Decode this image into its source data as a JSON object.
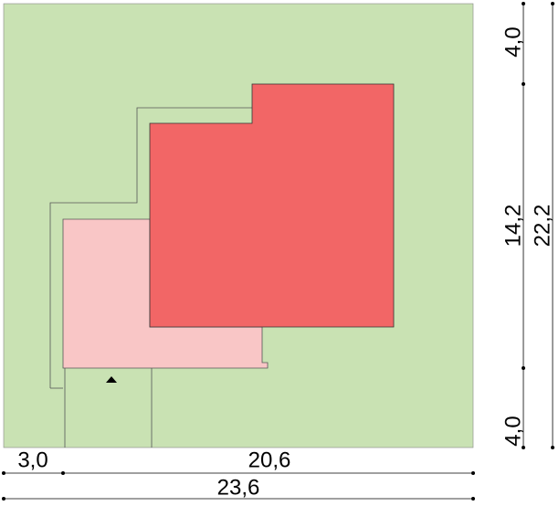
{
  "dimensions": {
    "right_segments": [
      "4,0",
      "14,2",
      "4,0"
    ],
    "right_total": "22,2",
    "bottom_segments": [
      "3,0",
      "20,6"
    ],
    "bottom_total": "23,6"
  }
}
